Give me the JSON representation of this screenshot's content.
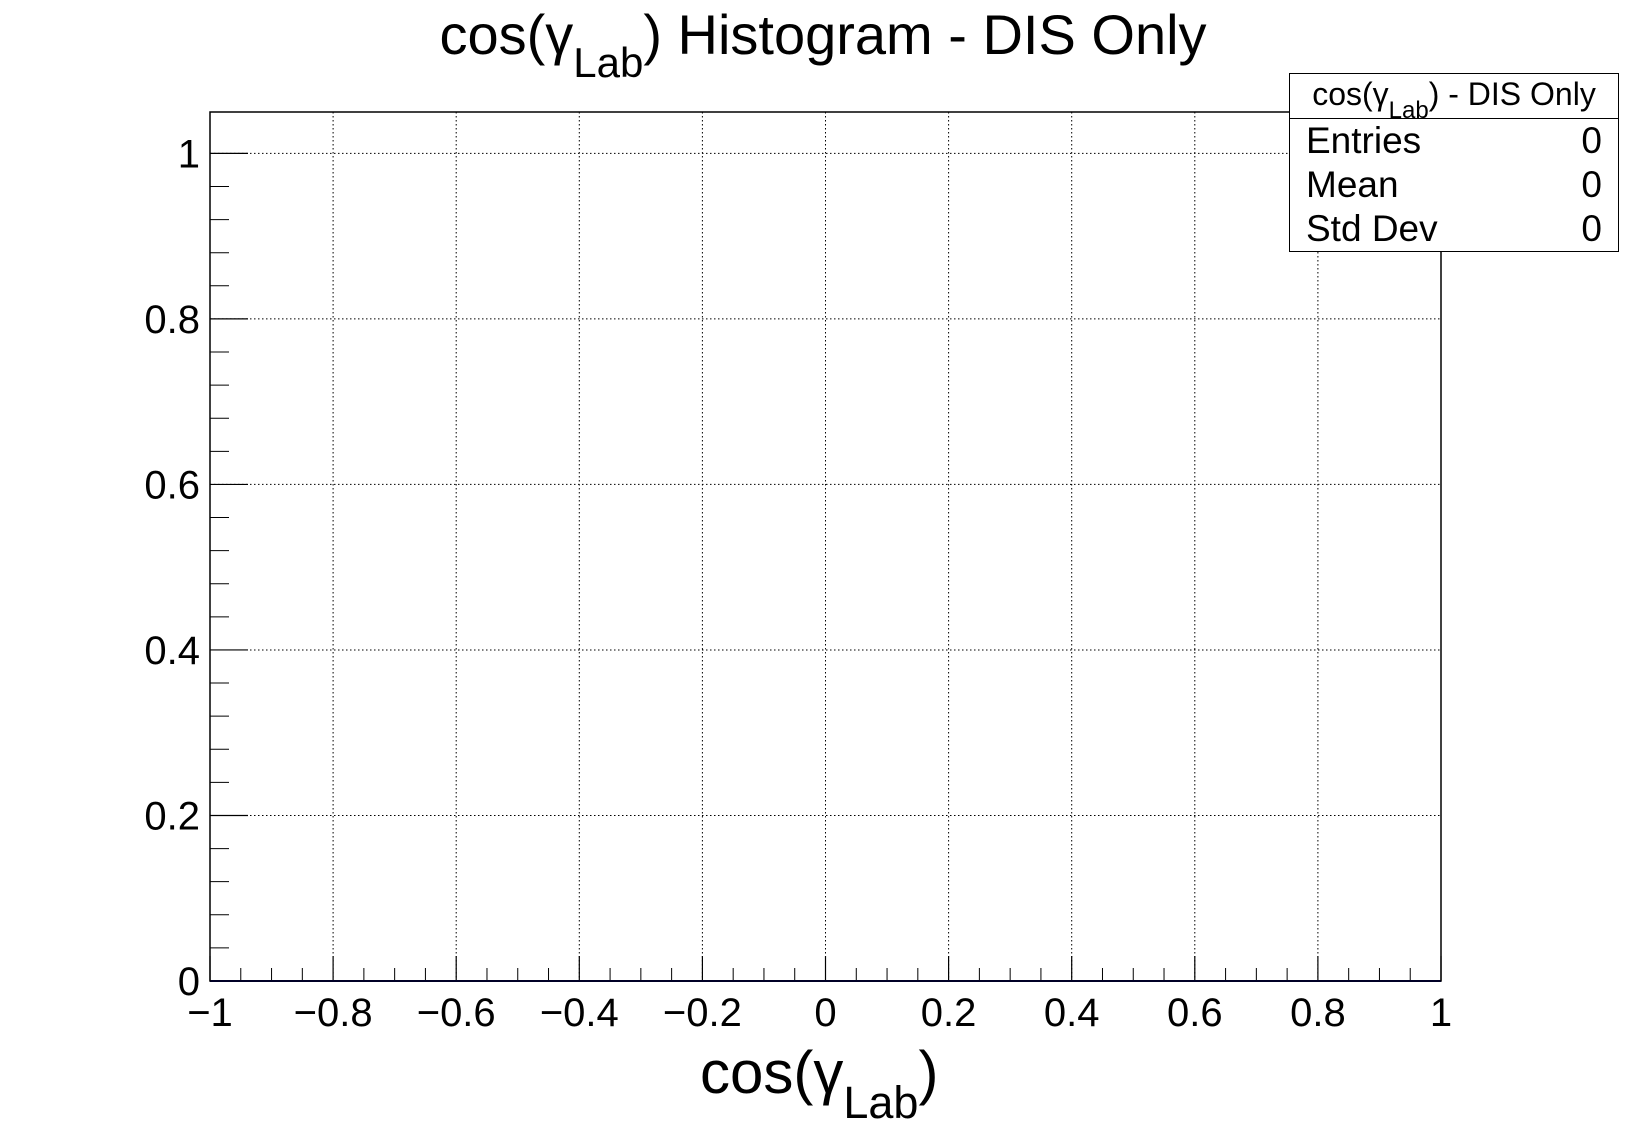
{
  "title": {
    "prefix": "cos(γ",
    "subscript": "Lab",
    "suffix": ") Histogram - DIS Only"
  },
  "stats_box": {
    "header_prefix": "cos(γ",
    "header_subscript": "Lab",
    "header_suffix": ") - DIS Only",
    "rows": [
      {
        "label": "Entries",
        "value": "0"
      },
      {
        "label": "Mean",
        "value": "0"
      },
      {
        "label": "Std Dev",
        "value": "0"
      }
    ]
  },
  "chart_data": {
    "type": "bar",
    "title": "cos(γ_Lab) Histogram - DIS Only",
    "xlabel": "cos(γ_Lab)",
    "ylabel": "",
    "xlim": [
      -1,
      1
    ],
    "ylim": [
      0,
      1.05
    ],
    "x_ticks": [
      -1,
      -0.8,
      -0.6,
      -0.4,
      -0.2,
      0,
      0.2,
      0.4,
      0.6,
      0.8,
      1
    ],
    "x_tick_labels": [
      "−1",
      "−0.8",
      "−0.6",
      "−0.4",
      "−0.2",
      "0",
      "0.2",
      "0.4",
      "0.6",
      "0.8",
      "1"
    ],
    "y_ticks": [
      0,
      0.2,
      0.4,
      0.6,
      0.8,
      1
    ],
    "y_tick_labels": [
      "0",
      "0.2",
      "0.4",
      "0.6",
      "0.8",
      "1"
    ],
    "grid": true,
    "series": [
      {
        "name": "cos(γ_Lab) - DIS Only",
        "values": [],
        "entries": 0,
        "mean": 0,
        "std_dev": 0
      }
    ],
    "line_color": "#000099",
    "legend": "top-right"
  }
}
